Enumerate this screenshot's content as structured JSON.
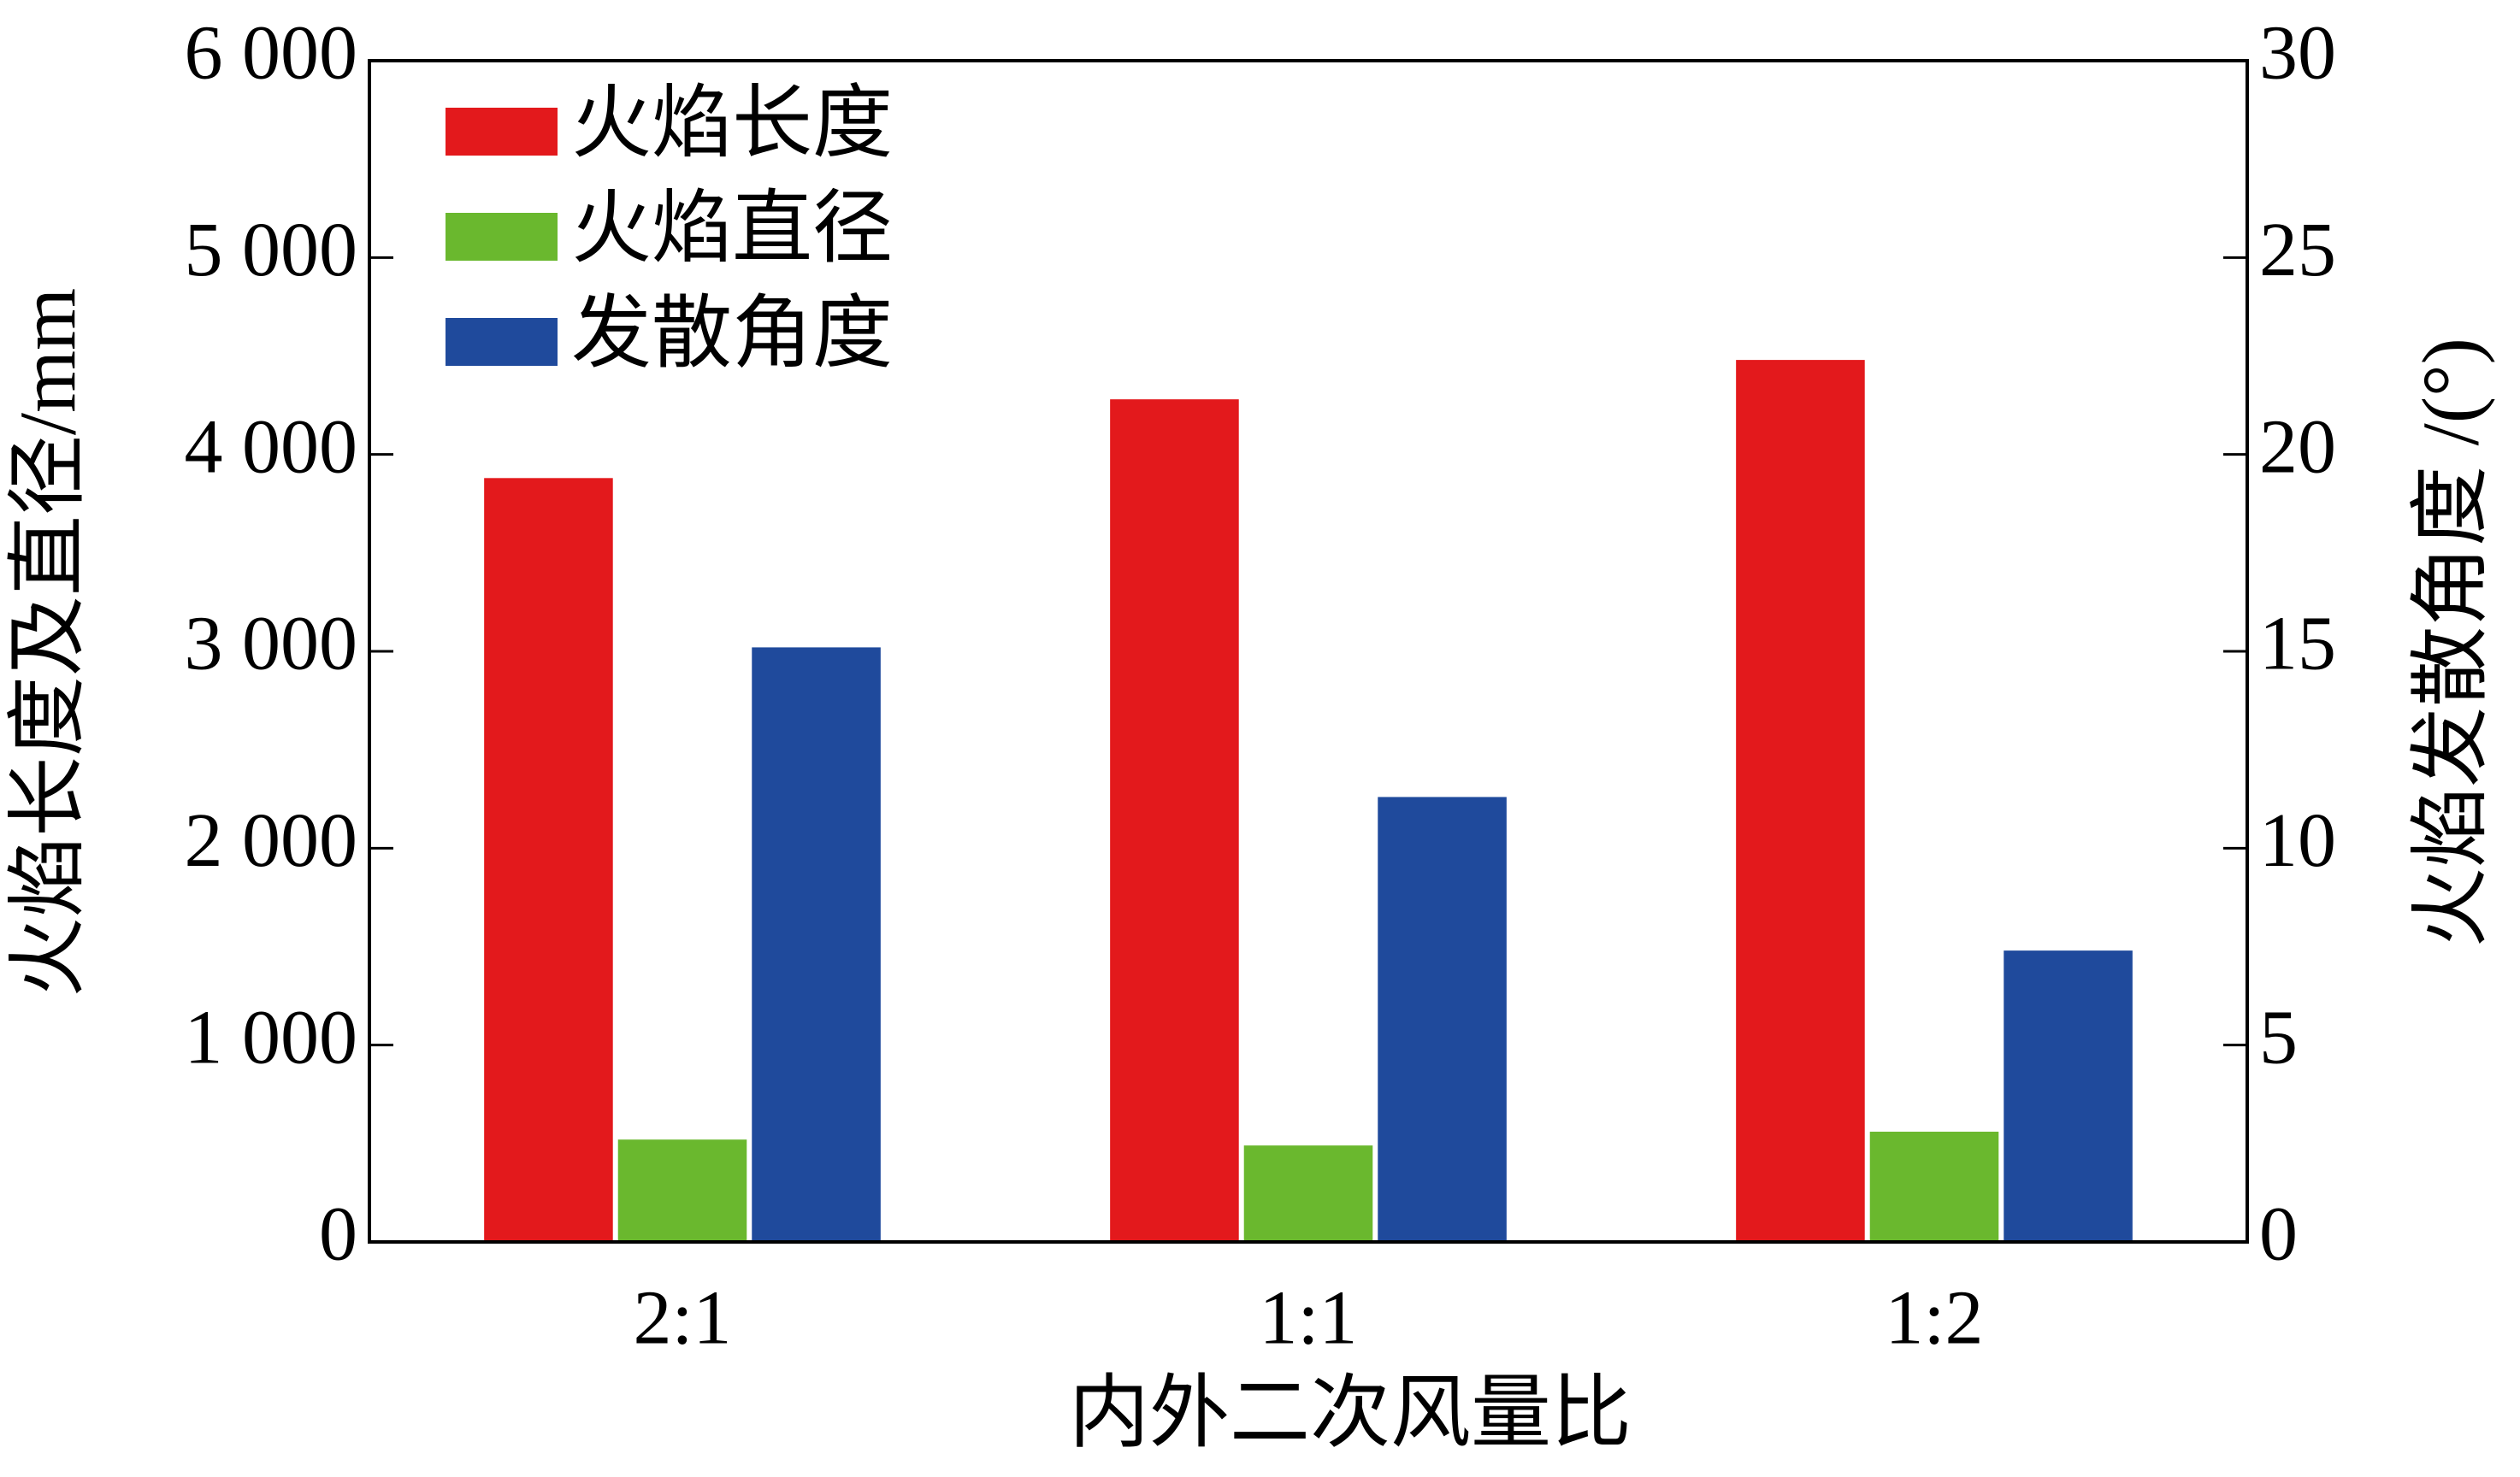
{
  "chart_data": {
    "type": "bar",
    "x_label": "内外二次风量比",
    "y_label": "火焰长度及直径/mm",
    "y2_label": "火焰发散角度 /(°)",
    "categories": [
      "2:1",
      "1:1",
      "1:2"
    ],
    "series": [
      {
        "name": "火焰长度",
        "color": "#e3191c",
        "values": [
          3880,
          4280,
          4480
        ]
      },
      {
        "name": "火焰直径",
        "color": "#6ab82e",
        "values": [
          520,
          490,
          560
        ]
      },
      {
        "name": "发散角度",
        "color": "#1f4a9c",
        "values": [
          15.1,
          11.3,
          7.4
        ],
        "axis": "y2"
      }
    ],
    "ylim": [
      0,
      6000
    ],
    "yticks": [
      {
        "value": 0,
        "label": "0"
      },
      {
        "value": 1000,
        "label": "1 000"
      },
      {
        "value": 2000,
        "label": "2 000"
      },
      {
        "value": 3000,
        "label": "3 000"
      },
      {
        "value": 4000,
        "label": "4 000"
      },
      {
        "value": 5000,
        "label": "5 000"
      },
      {
        "value": 6000,
        "label": "6 000"
      }
    ],
    "y2lim": [
      0,
      30
    ],
    "y2ticks": [
      0,
      5,
      10,
      15,
      20,
      25,
      30
    ],
    "legend": "upper left",
    "grid": false
  }
}
